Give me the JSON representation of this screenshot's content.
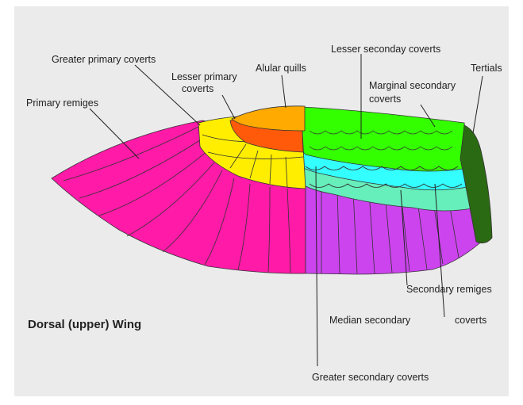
{
  "title": "Dorsal (upper) Wing",
  "labels": [
    {
      "lines": [
        "Greater primary coverts"
      ]
    },
    {
      "lines": [
        "Lesser primary",
        "coverts"
      ]
    },
    {
      "lines": [
        "Alular quills"
      ]
    },
    {
      "lines": [
        "Lesser seconday coverts"
      ]
    },
    {
      "lines": [
        "Tertials"
      ]
    },
    {
      "lines": [
        "Marginal secondary",
        "coverts"
      ]
    },
    {
      "lines": [
        "Primary remiges"
      ]
    },
    {
      "lines": [
        "Secondary remiges"
      ]
    },
    {
      "lines": [
        "Median secondary",
        "coverts"
      ]
    },
    {
      "lines": [
        "Greater secondary coverts"
      ]
    }
  ]
}
